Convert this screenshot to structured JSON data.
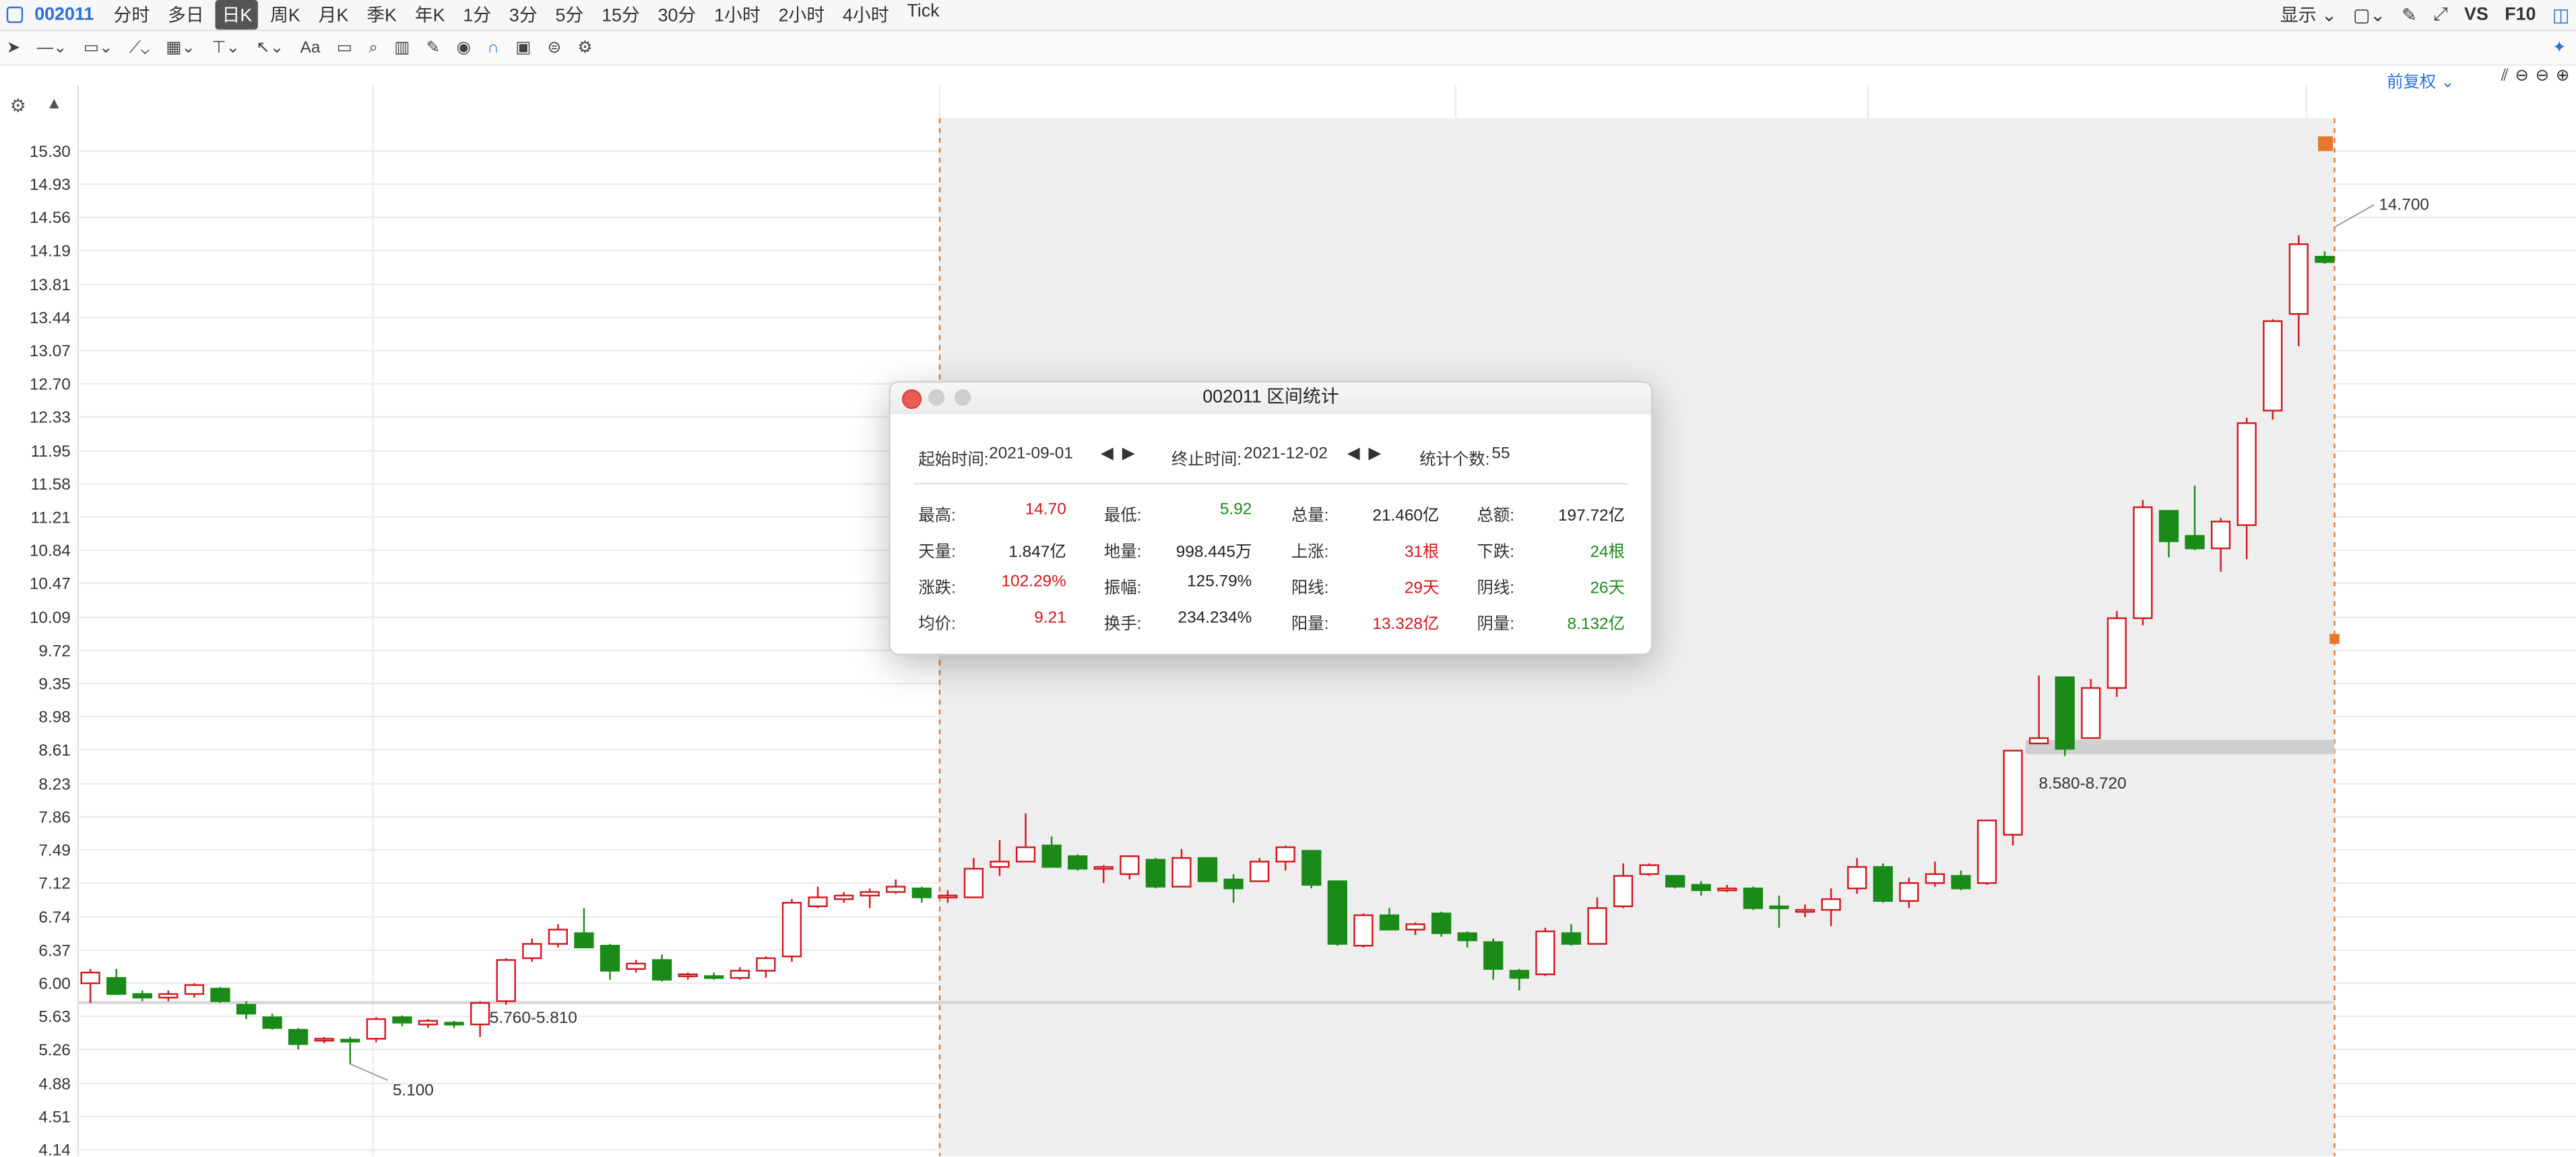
{
  "toolbar": {
    "code": "002011",
    "periods": [
      "分时",
      "多日",
      "日K",
      "周K",
      "月K",
      "季K",
      "年K",
      "1分",
      "3分",
      "5分",
      "15分",
      "30分",
      "1小时",
      "2小时",
      "4小时",
      "Tick"
    ],
    "active_period": "日K",
    "display_label": "显示",
    "vs_label": "VS",
    "f10_label": "F10",
    "font_tool_label": "Aa",
    "adjust_label": "前复权"
  },
  "chart_data": {
    "type": "candlestick",
    "y_ticks": [
      "15.30",
      "14.93",
      "14.56",
      "14.19",
      "13.81",
      "13.44",
      "13.07",
      "12.70",
      "12.33",
      "11.95",
      "11.58",
      "11.21",
      "10.84",
      "10.47",
      "10.09",
      "9.72",
      "9.35",
      "8.98",
      "8.61",
      "8.23",
      "7.86",
      "7.49",
      "7.12",
      "6.74",
      "6.37",
      "6.00",
      "5.63",
      "5.26",
      "4.88",
      "4.51",
      "4.14"
    ],
    "ylim": [
      4.14,
      15.3
    ],
    "candles": [
      [
        6.0,
        6.12,
        6.16,
        5.78
      ],
      [
        6.06,
        5.88,
        6.16,
        5.88
      ],
      [
        5.88,
        5.84,
        5.92,
        5.8
      ],
      [
        5.84,
        5.88,
        5.92,
        5.8
      ],
      [
        5.88,
        5.98,
        6.0,
        5.84
      ],
      [
        5.94,
        5.8,
        5.96,
        5.78
      ],
      [
        5.76,
        5.66,
        5.8,
        5.6
      ],
      [
        5.62,
        5.5,
        5.66,
        5.48
      ],
      [
        5.48,
        5.32,
        5.5,
        5.26
      ],
      [
        5.36,
        5.38,
        5.4,
        5.33
      ],
      [
        5.37,
        5.36,
        5.4,
        5.1
      ],
      [
        5.38,
        5.6,
        5.62,
        5.34
      ],
      [
        5.62,
        5.56,
        5.64,
        5.52
      ],
      [
        5.54,
        5.58,
        5.6,
        5.5
      ],
      [
        5.56,
        5.54,
        5.58,
        5.5
      ],
      [
        5.54,
        5.78,
        5.8,
        5.4
      ],
      [
        5.8,
        6.26,
        6.28,
        5.76
      ],
      [
        6.28,
        6.44,
        6.5,
        6.24
      ],
      [
        6.44,
        6.6,
        6.66,
        6.4
      ],
      [
        6.56,
        6.4,
        6.84,
        6.4
      ],
      [
        6.42,
        6.14,
        6.44,
        6.04
      ],
      [
        6.16,
        6.22,
        6.26,
        6.12
      ],
      [
        6.26,
        6.04,
        6.32,
        6.02
      ],
      [
        6.08,
        6.1,
        6.12,
        6.04
      ],
      [
        6.08,
        6.06,
        6.12,
        6.04
      ],
      [
        6.06,
        6.14,
        6.18,
        6.04
      ],
      [
        6.14,
        6.28,
        6.3,
        6.06
      ],
      [
        6.3,
        6.9,
        6.94,
        6.24
      ],
      [
        6.86,
        6.96,
        7.08,
        6.84
      ],
      [
        6.94,
        6.98,
        7.02,
        6.9
      ],
      [
        6.98,
        7.02,
        7.06,
        6.84
      ],
      [
        7.02,
        7.08,
        7.16,
        7.0
      ],
      [
        7.06,
        6.96,
        7.08,
        6.9
      ],
      [
        6.96,
        6.98,
        7.04,
        6.9
      ],
      [
        6.96,
        7.28,
        7.4,
        6.96
      ],
      [
        7.3,
        7.36,
        7.6,
        7.2
      ],
      [
        7.36,
        7.52,
        7.9,
        7.36
      ],
      [
        7.54,
        7.3,
        7.64,
        7.3
      ],
      [
        7.42,
        7.28,
        7.44,
        7.26
      ],
      [
        7.3,
        7.3,
        7.32,
        7.12
      ],
      [
        7.22,
        7.42,
        7.42,
        7.16
      ],
      [
        7.38,
        7.08,
        7.4,
        7.06
      ],
      [
        7.08,
        7.4,
        7.5,
        7.08
      ],
      [
        7.4,
        7.14,
        7.4,
        7.14
      ],
      [
        7.16,
        7.06,
        7.22,
        6.9
      ],
      [
        7.14,
        7.36,
        7.4,
        7.14
      ],
      [
        7.36,
        7.52,
        7.54,
        7.26
      ],
      [
        7.48,
        7.1,
        7.48,
        7.06
      ],
      [
        7.14,
        6.44,
        7.14,
        6.42
      ],
      [
        6.42,
        6.76,
        6.78,
        6.4
      ],
      [
        6.76,
        6.6,
        6.84,
        6.6
      ],
      [
        6.6,
        6.66,
        6.68,
        6.54
      ],
      [
        6.78,
        6.56,
        6.8,
        6.52
      ],
      [
        6.56,
        6.48,
        6.58,
        6.4
      ],
      [
        6.46,
        6.16,
        6.5,
        6.04
      ],
      [
        6.14,
        6.06,
        6.16,
        5.92
      ],
      [
        6.1,
        6.58,
        6.62,
        6.08
      ],
      [
        6.56,
        6.44,
        6.66,
        6.42
      ],
      [
        6.44,
        6.84,
        6.96,
        6.44
      ],
      [
        6.86,
        7.2,
        7.34,
        6.84
      ],
      [
        7.22,
        7.32,
        7.34,
        7.2
      ],
      [
        7.2,
        7.08,
        7.2,
        7.06
      ],
      [
        7.1,
        7.04,
        7.14,
        6.98
      ],
      [
        7.04,
        7.06,
        7.1,
        7.02
      ],
      [
        7.06,
        6.84,
        7.08,
        6.82
      ],
      [
        6.86,
        6.84,
        6.98,
        6.62
      ],
      [
        6.8,
        6.82,
        6.88,
        6.74
      ],
      [
        6.82,
        6.94,
        7.06,
        6.64
      ],
      [
        7.06,
        7.3,
        7.4,
        7.0
      ],
      [
        7.3,
        6.92,
        7.34,
        6.9
      ],
      [
        6.92,
        7.12,
        7.18,
        6.84
      ],
      [
        7.12,
        7.22,
        7.36,
        7.08
      ],
      [
        7.2,
        7.06,
        7.26,
        7.04
      ],
      [
        7.12,
        7.82,
        7.82,
        7.1
      ],
      [
        7.66,
        8.6,
        8.6,
        7.54
      ],
      [
        8.68,
        8.74,
        9.44,
        8.68
      ],
      [
        9.42,
        8.62,
        9.42,
        8.54
      ],
      [
        8.74,
        9.3,
        9.4,
        8.74
      ],
      [
        9.3,
        10.08,
        10.16,
        9.2
      ],
      [
        10.08,
        11.32,
        11.4,
        10.0
      ],
      [
        11.28,
        10.94,
        11.28,
        10.76
      ],
      [
        11.0,
        10.86,
        11.56,
        10.84
      ],
      [
        10.86,
        11.16,
        11.2,
        10.6
      ],
      [
        11.12,
        12.26,
        12.32,
        10.74
      ],
      [
        12.4,
        13.4,
        13.42,
        12.3
      ],
      [
        13.48,
        14.26,
        14.36,
        13.12
      ],
      [
        14.12,
        14.06,
        14.18,
        14.04
      ]
    ],
    "annotations": [
      "5.760-5.810",
      "5.100",
      "8.580-8.720",
      "14.700"
    ]
  },
  "dialog": {
    "title": "002011 区间统计",
    "start_label": "起始时间:",
    "start_value": "2021-09-01",
    "end_label": "终止时间:",
    "end_value": "2021-12-02",
    "count_label": "统计个数:",
    "count_value": "55",
    "stats": [
      {
        "label": "最高:",
        "value": "14.70",
        "color": "red"
      },
      {
        "label": "最低:",
        "value": "5.92",
        "color": "green"
      },
      {
        "label": "总量:",
        "value": "21.460亿",
        "color": "black"
      },
      {
        "label": "总额:",
        "value": "197.72亿",
        "color": "black"
      },
      {
        "label": "天量:",
        "value": "1.847亿",
        "color": "black"
      },
      {
        "label": "地量:",
        "value": "998.445万",
        "color": "black"
      },
      {
        "label": "上涨:",
        "value": "31根",
        "color": "red"
      },
      {
        "label": "下跌:",
        "value": "24根",
        "color": "green"
      },
      {
        "label": "涨跌:",
        "value": "102.29%",
        "color": "red"
      },
      {
        "label": "振幅:",
        "value": "125.79%",
        "color": "black"
      },
      {
        "label": "阳线:",
        "value": "29天",
        "color": "red"
      },
      {
        "label": "阴线:",
        "value": "26天",
        "color": "green"
      },
      {
        "label": "均价:",
        "value": "9.21",
        "color": "red"
      },
      {
        "label": "换手:",
        "value": "234.234%",
        "color": "black"
      },
      {
        "label": "阳量:",
        "value": "13.328亿",
        "color": "red"
      },
      {
        "label": "阴量:",
        "value": "8.132亿",
        "color": "green"
      }
    ]
  },
  "colors": {
    "up": "#d3161e",
    "down": "#1a8a18",
    "accent": "#2a6fdb",
    "range": "#e8772e"
  }
}
